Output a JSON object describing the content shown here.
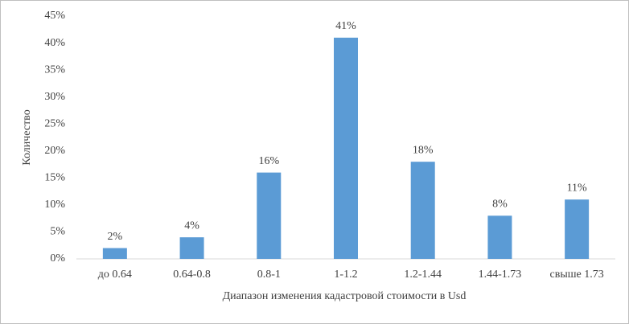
{
  "chart_data": {
    "type": "bar",
    "x_label": "Диапазон изменения кадастровой стоимости в Usd",
    "y_label": "Количество",
    "categories": [
      "до 0.64",
      "0.64-0.8",
      "0.8-1",
      "1-1.2",
      "1.2-1.44",
      "1.44-1.73",
      "свыше 1.73"
    ],
    "values": [
      2,
      4,
      16,
      41,
      18,
      8,
      11
    ],
    "value_labels": [
      "2%",
      "4%",
      "16%",
      "41%",
      "18%",
      "8%",
      "11%"
    ],
    "color": "#5b9bd5",
    "ylim": [
      0,
      45
    ],
    "yticks": [
      {
        "value": 0,
        "label": "0%"
      },
      {
        "value": 5,
        "label": "5%"
      },
      {
        "value": 10,
        "label": "10%"
      },
      {
        "value": 15,
        "label": "15%"
      },
      {
        "value": 20,
        "label": "20%"
      },
      {
        "value": 25,
        "label": "25%"
      },
      {
        "value": 30,
        "label": "30%"
      },
      {
        "value": 35,
        "label": "35%"
      },
      {
        "value": 40,
        "label": "40%"
      },
      {
        "value": 45,
        "label": "45%"
      }
    ],
    "grid": false
  }
}
